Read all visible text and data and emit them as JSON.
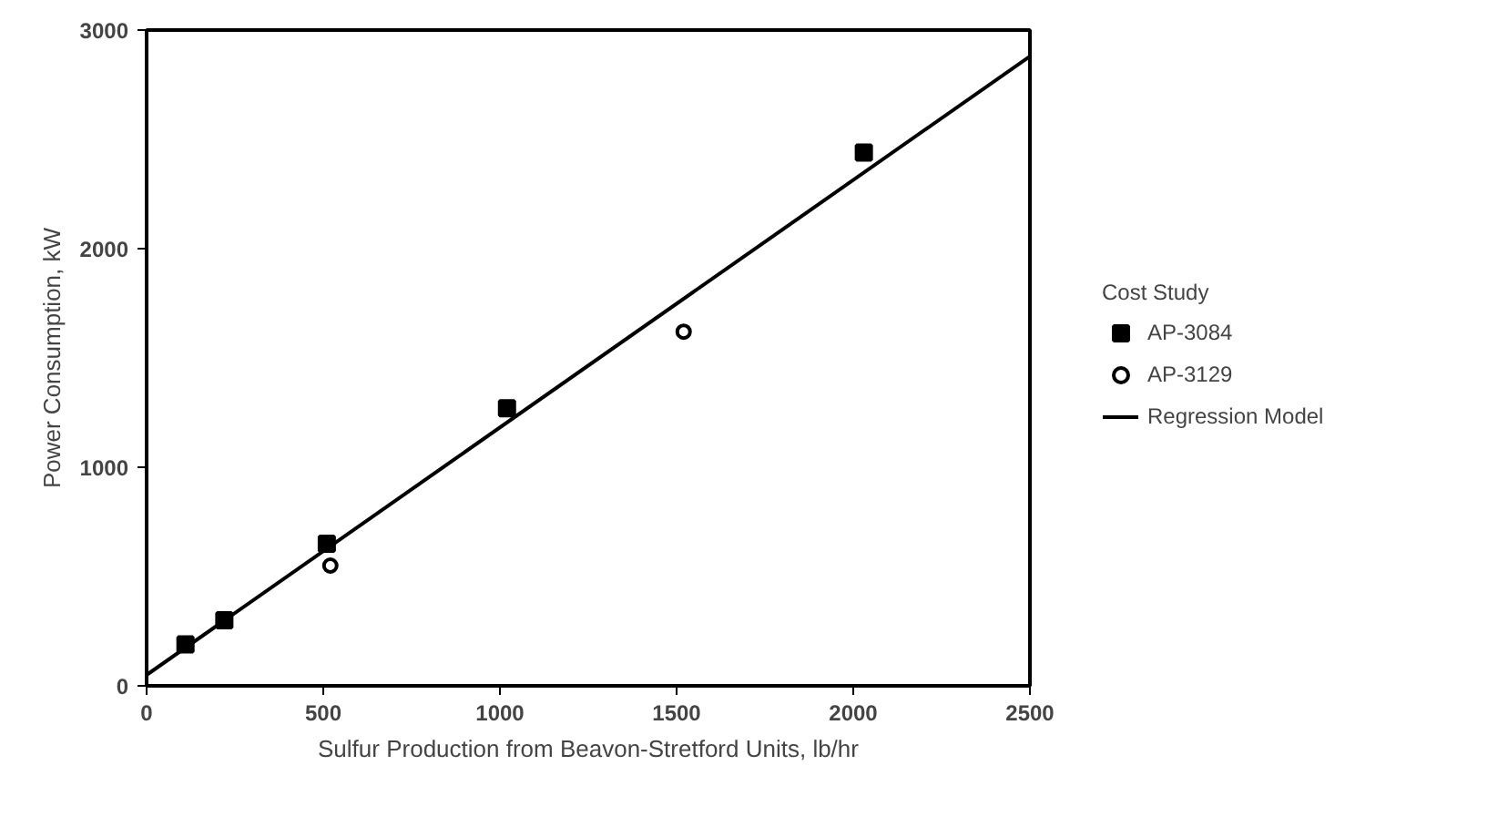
{
  "chart_data": {
    "type": "scatter",
    "xlabel": "Sulfur Production from Beavon-Stretford Units, lb/hr",
    "ylabel": "Power Consumption, kW",
    "legend_title": "Cost Study",
    "legend": "right",
    "xlim": [
      0,
      2500
    ],
    "xticks": [
      0,
      500,
      1000,
      1500,
      2000,
      2500
    ],
    "ylim": [
      0,
      3000
    ],
    "yticks": [
      0,
      1000,
      2000,
      3000
    ],
    "grid": false,
    "series": [
      {
        "name": "AP-3084",
        "marker": "square",
        "color": "#000000",
        "x": [
          110,
          220,
          510,
          1020,
          2030
        ],
        "values": [
          190,
          300,
          650,
          1270,
          2440
        ]
      },
      {
        "name": "AP-3129",
        "marker": "circle",
        "color": "#000000",
        "x": [
          520,
          1520
        ],
        "values": [
          550,
          1620
        ]
      },
      {
        "name": "Regression Model",
        "type": "line",
        "line_style": "solid",
        "color": "#000000",
        "x": [
          0,
          2500
        ],
        "values": [
          50,
          2880
        ]
      }
    ]
  }
}
